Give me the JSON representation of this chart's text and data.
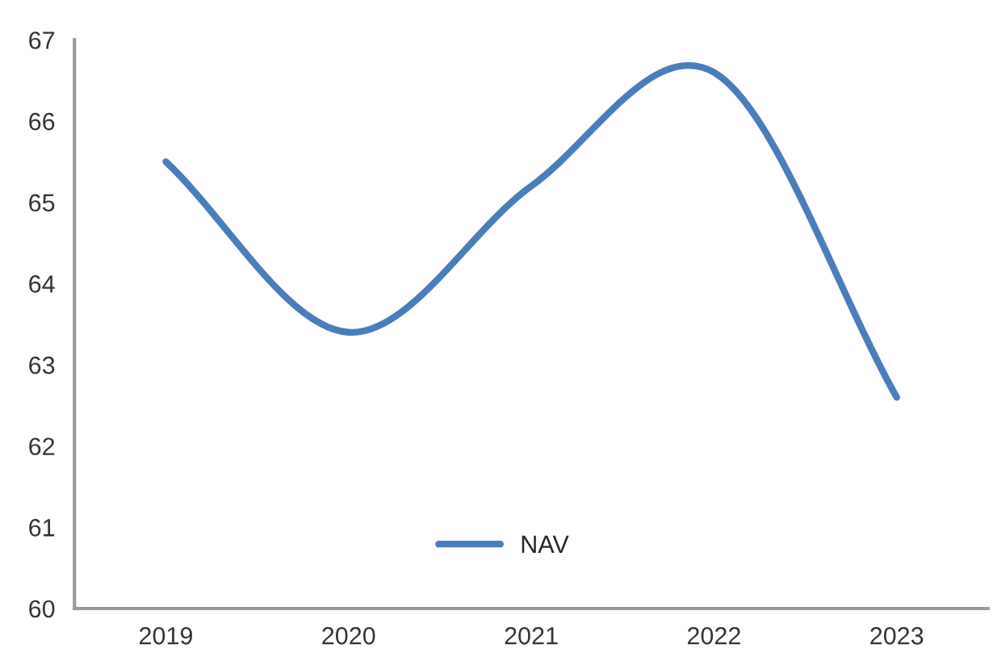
{
  "chart_data": {
    "type": "line",
    "categories": [
      "2019",
      "2020",
      "2021",
      "2022",
      "2023"
    ],
    "series": [
      {
        "name": "NAV",
        "color": "#4a7ebb",
        "values": [
          65.5,
          63.4,
          65.2,
          66.6,
          62.6
        ]
      }
    ],
    "ylim": [
      60,
      67
    ],
    "yticks": [
      60,
      61,
      62,
      63,
      64,
      65,
      66,
      67
    ],
    "grid": false,
    "legend": "bottom"
  }
}
